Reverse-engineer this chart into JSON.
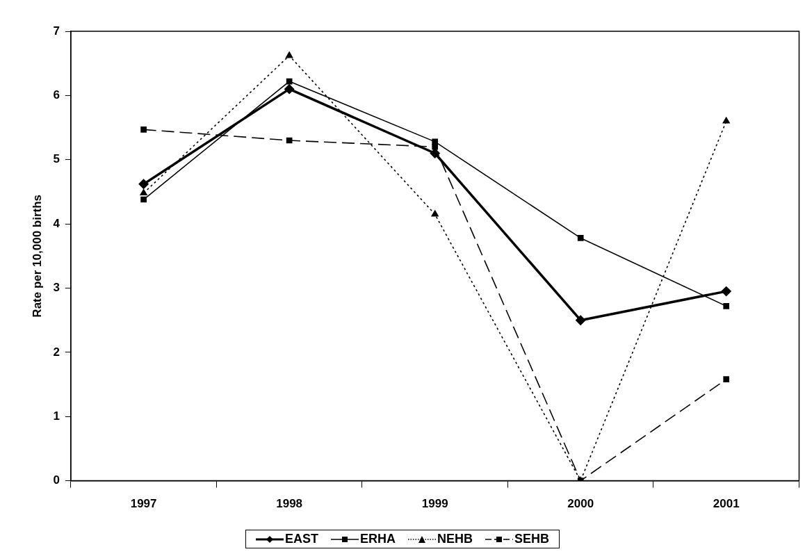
{
  "chart_data": {
    "type": "line",
    "ylabel": "Rate per 10,000 births",
    "categories": [
      "1997",
      "1998",
      "1999",
      "2000",
      "2001"
    ],
    "ylim": [
      0,
      7
    ],
    "yticks": [
      0,
      1,
      2,
      3,
      4,
      5,
      6,
      7
    ],
    "grid": false,
    "legend": "bottom",
    "series": [
      {
        "name": "EAST",
        "color": "#000000",
        "marker": "diamond",
        "line_style": "solid",
        "values": [
          4.62,
          6.1,
          5.1,
          2.5,
          2.95
        ]
      },
      {
        "name": "ERHA",
        "color": "#000000",
        "marker": "square",
        "line_style": "solid",
        "values": [
          4.38,
          6.22,
          5.28,
          3.78,
          2.72
        ]
      },
      {
        "name": "NEHB",
        "color": "#000000",
        "marker": "triangle",
        "line_style": "dotted",
        "values": [
          4.48,
          6.62,
          4.15,
          0,
          5.6
        ]
      },
      {
        "name": "SEHB",
        "color": "#000000",
        "marker": "square",
        "line_style": "dashed",
        "values": [
          5.47,
          5.3,
          5.2,
          0,
          1.58
        ]
      }
    ]
  }
}
